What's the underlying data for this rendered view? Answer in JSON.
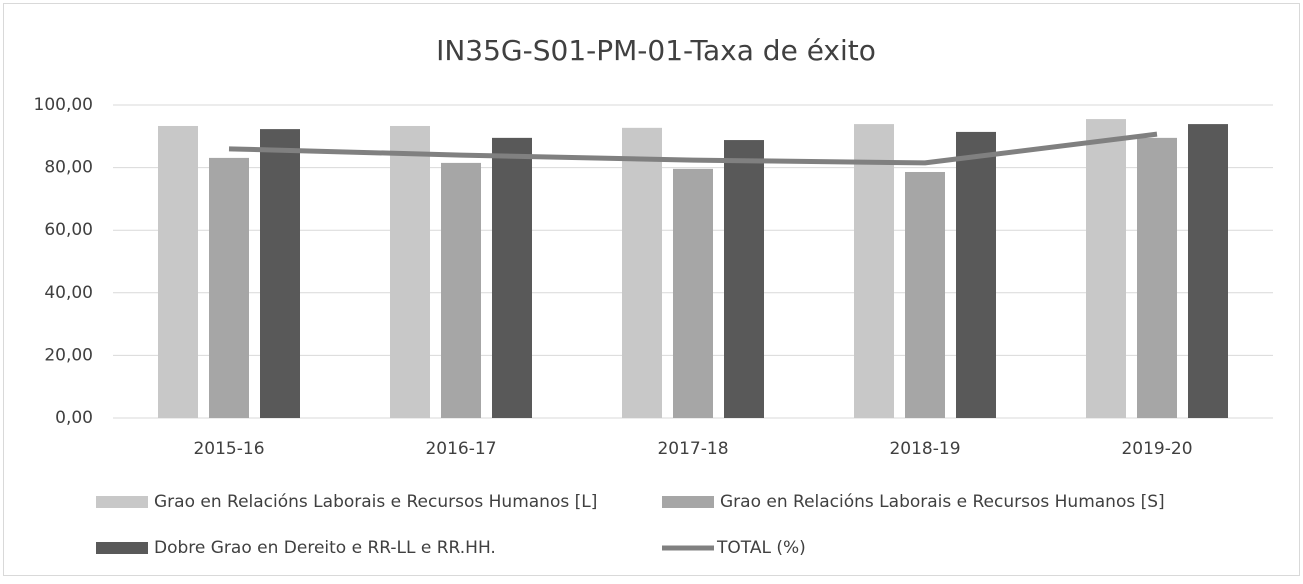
{
  "chart_data": {
    "type": "bar",
    "title": "IN35G-S01-PM-01-Taxa de éxito",
    "categories": [
      "2015-16",
      "2016-17",
      "2017-18",
      "2018-19",
      "2019-20"
    ],
    "series": [
      {
        "name": "Grao en Relacións Laborais e Recursos Humanos [L]",
        "color": "#c8c8c8",
        "values": [
          93.3,
          93.3,
          92.7,
          93.9,
          95.5
        ]
      },
      {
        "name": "Grao en Relacións Laborais e Recursos Humanos [S]",
        "color": "#a6a6a6",
        "values": [
          83.1,
          81.5,
          79.6,
          78.6,
          89.5
        ]
      },
      {
        "name": "Dobre Grao en Dereito e RR-LL e RR.HH.",
        "color": "#595959",
        "values": [
          92.3,
          89.5,
          88.8,
          91.4,
          93.9
        ]
      },
      {
        "name": "TOTAL (%)",
        "color": "#808080",
        "type": "line",
        "values": [
          86.0,
          84.0,
          82.4,
          81.5,
          90.7
        ]
      }
    ],
    "ylim": [
      0,
      100
    ],
    "yticks": [
      {
        "value": 0,
        "label": "0,00"
      },
      {
        "value": 20,
        "label": "20,00"
      },
      {
        "value": 40,
        "label": "40,00"
      },
      {
        "value": 60,
        "label": "60,00"
      },
      {
        "value": 80,
        "label": "80,00"
      },
      {
        "value": 100,
        "label": "100,00"
      }
    ],
    "grid": true,
    "legend": "bottom"
  }
}
